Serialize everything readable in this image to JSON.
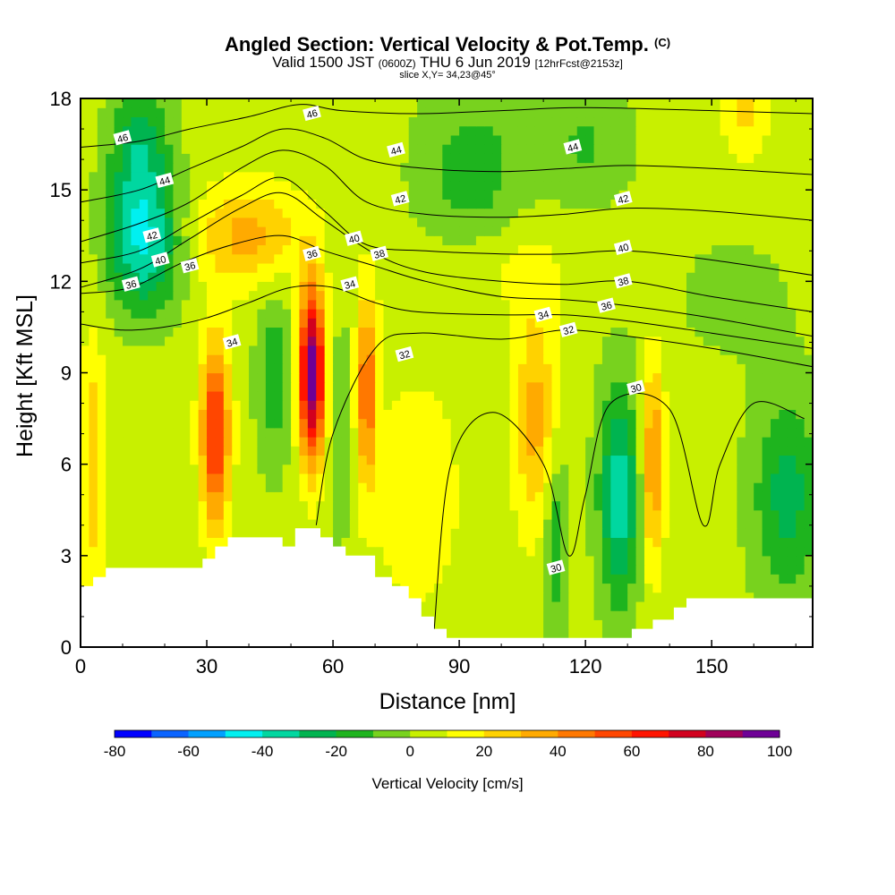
{
  "title": {
    "main": "Angled Section: Vertical Velocity & Pot.Temp.",
    "copyright": "(C)",
    "valid_prefix": "Valid 1500 JST",
    "valid_utc": "(0600Z)",
    "valid_date": "THU 6 Jun 2019",
    "forecast": "[12hrFcst@2153z]",
    "slice": "slice X,Y= 34,23@45°"
  },
  "chart_data": {
    "type": "heatmap",
    "xlabel": "Distance [nm]",
    "ylabel": "Height [Kft MSL]",
    "xlim": [
      0,
      174
    ],
    "ylim": [
      0,
      18
    ],
    "x_ticks": [
      0,
      30,
      60,
      90,
      120,
      150
    ],
    "y_ticks": [
      0,
      3,
      6,
      9,
      12,
      15,
      18
    ],
    "colorbar": {
      "label": "Vertical Velocity [cm/s]",
      "ticks": [
        -80,
        -60,
        -40,
        -20,
        0,
        20,
        40,
        60,
        80,
        100
      ],
      "bins": [
        -80,
        -70,
        -60,
        -50,
        -40,
        -30,
        -20,
        -10,
        0,
        10,
        20,
        30,
        40,
        50,
        60,
        70,
        80,
        90,
        100
      ],
      "colors": [
        "#0000ff",
        "#0a64ff",
        "#00a0ff",
        "#00f0f0",
        "#00d7a0",
        "#00b450",
        "#1eb41e",
        "#78d21e",
        "#c8f000",
        "#ffff00",
        "#ffd200",
        "#ffaa00",
        "#ff7800",
        "#ff4600",
        "#ff1400",
        "#d2001e",
        "#a0005a",
        "#6e0096"
      ]
    },
    "terrain": [
      [
        0,
        2
      ],
      [
        3,
        2
      ],
      [
        3,
        2.3
      ],
      [
        6,
        2.3
      ],
      [
        6,
        2.6
      ],
      [
        29,
        2.6
      ],
      [
        29,
        2.9
      ],
      [
        32,
        2.9
      ],
      [
        32,
        3.3
      ],
      [
        35,
        3.3
      ],
      [
        35,
        3.6
      ],
      [
        48,
        3.6
      ],
      [
        48,
        3.3
      ],
      [
        51,
        3.3
      ],
      [
        51,
        3.9
      ],
      [
        57,
        3.9
      ],
      [
        57,
        3.6
      ],
      [
        60,
        3.6
      ],
      [
        60,
        3.3
      ],
      [
        63,
        3.3
      ],
      [
        63,
        3.0
      ],
      [
        70,
        3.0
      ],
      [
        70,
        2.3
      ],
      [
        74,
        2.3
      ],
      [
        74,
        2.0
      ],
      [
        78,
        2.0
      ],
      [
        78,
        1.6
      ],
      [
        81,
        1.6
      ],
      [
        81,
        1.0
      ],
      [
        84,
        1.0
      ],
      [
        84,
        0.6
      ],
      [
        87,
        0.6
      ],
      [
        87,
        0.3
      ],
      [
        131,
        0.3
      ],
      [
        131,
        0.6
      ],
      [
        136,
        0.6
      ],
      [
        136,
        0.9
      ],
      [
        141,
        0.9
      ],
      [
        141,
        1.3
      ],
      [
        144,
        1.3
      ],
      [
        144,
        1.6
      ],
      [
        174,
        1.6
      ]
    ],
    "theta_contours": [
      {
        "label": "30",
        "points": [
          [
            84,
            0.5
          ],
          [
            88,
            6
          ],
          [
            98,
            7.7
          ],
          [
            110,
            6
          ],
          [
            116,
            3
          ],
          [
            120,
            5
          ],
          [
            126,
            8
          ],
          [
            140,
            7.8
          ],
          [
            148,
            4
          ],
          [
            152,
            6
          ],
          [
            160,
            8
          ],
          [
            172,
            7.5
          ]
        ],
        "label_at": [
          [
            113,
            2.6
          ],
          [
            132,
            8.5
          ]
        ]
      },
      {
        "label": "32",
        "points": [
          [
            56,
            4
          ],
          [
            60,
            7
          ],
          [
            70,
            9.8
          ],
          [
            80,
            10.3
          ],
          [
            100,
            10.1
          ],
          [
            115,
            10.4
          ],
          [
            130,
            10.2
          ],
          [
            150,
            9.8
          ],
          [
            174,
            9.2
          ]
        ],
        "label_at": [
          [
            77,
            9.6
          ],
          [
            116,
            10.4
          ]
        ]
      },
      {
        "label": "34",
        "points": [
          [
            0,
            10.6
          ],
          [
            10,
            10.4
          ],
          [
            20,
            10.5
          ],
          [
            30,
            10.8
          ],
          [
            40,
            11.3
          ],
          [
            50,
            11.8
          ],
          [
            60,
            11.8
          ],
          [
            70,
            11.3
          ],
          [
            80,
            11.0
          ],
          [
            100,
            10.9
          ],
          [
            115,
            10.9
          ],
          [
            130,
            10.7
          ],
          [
            150,
            10.3
          ],
          [
            174,
            9.8
          ]
        ],
        "label_at": [
          [
            36,
            10
          ],
          [
            64,
            11.9
          ],
          [
            110,
            10.9
          ]
        ]
      },
      {
        "label": "36",
        "points": [
          [
            0,
            11.6
          ],
          [
            12,
            11.8
          ],
          [
            24,
            12.6
          ],
          [
            36,
            13.2
          ],
          [
            48,
            13.5
          ],
          [
            58,
            13.0
          ],
          [
            70,
            12.5
          ],
          [
            82,
            12.0
          ],
          [
            100,
            11.5
          ],
          [
            115,
            11.4
          ],
          [
            130,
            11.2
          ],
          [
            150,
            10.8
          ],
          [
            174,
            10.2
          ]
        ],
        "label_at": [
          [
            12,
            11.9
          ],
          [
            26,
            12.5
          ],
          [
            55,
            12.9
          ],
          [
            125,
            11.2
          ]
        ]
      },
      {
        "label": "38",
        "points": [
          [
            0,
            11.8
          ],
          [
            14,
            12.4
          ],
          [
            26,
            13.4
          ],
          [
            38,
            14.4
          ],
          [
            48,
            14.9
          ],
          [
            58,
            14.0
          ],
          [
            70,
            12.9
          ],
          [
            82,
            12.3
          ],
          [
            100,
            12.0
          ],
          [
            115,
            11.9
          ],
          [
            130,
            12.0
          ],
          [
            150,
            11.5
          ],
          [
            174,
            11.0
          ]
        ],
        "label_at": [
          [
            71,
            12.9
          ],
          [
            129,
            12.0
          ]
        ]
      },
      {
        "label": "40",
        "points": [
          [
            0,
            12.6
          ],
          [
            14,
            13.0
          ],
          [
            26,
            13.9
          ],
          [
            38,
            14.8
          ],
          [
            48,
            15.4
          ],
          [
            58,
            14.3
          ],
          [
            68,
            13.2
          ],
          [
            82,
            13.0
          ],
          [
            100,
            12.9
          ],
          [
            115,
            12.9
          ],
          [
            130,
            13.0
          ],
          [
            150,
            12.7
          ],
          [
            174,
            12.2
          ]
        ],
        "label_at": [
          [
            19,
            12.7
          ],
          [
            65,
            13.4
          ],
          [
            129,
            13.1
          ]
        ]
      },
      {
        "label": "42",
        "points": [
          [
            0,
            13.3
          ],
          [
            14,
            13.9
          ],
          [
            26,
            14.6
          ],
          [
            38,
            15.7
          ],
          [
            48,
            16.3
          ],
          [
            58,
            15.8
          ],
          [
            68,
            14.6
          ],
          [
            82,
            14.2
          ],
          [
            100,
            14.1
          ],
          [
            115,
            14.2
          ],
          [
            130,
            14.4
          ],
          [
            150,
            14.3
          ],
          [
            174,
            14.0
          ]
        ],
        "label_at": [
          [
            17,
            13.5
          ],
          [
            76,
            14.7
          ],
          [
            129,
            14.7
          ]
        ]
      },
      {
        "label": "44",
        "points": [
          [
            0,
            14.6
          ],
          [
            14,
            15.0
          ],
          [
            26,
            15.7
          ],
          [
            38,
            16.4
          ],
          [
            48,
            17.0
          ],
          [
            58,
            16.7
          ],
          [
            68,
            16.0
          ],
          [
            82,
            15.7
          ],
          [
            100,
            15.6
          ],
          [
            115,
            15.7
          ],
          [
            130,
            15.8
          ],
          [
            150,
            15.7
          ],
          [
            174,
            15.5
          ]
        ],
        "label_at": [
          [
            20,
            15.3
          ],
          [
            75,
            16.3
          ],
          [
            117,
            16.4
          ]
        ]
      },
      {
        "label": "46",
        "points": [
          [
            0,
            16.4
          ],
          [
            14,
            16.6
          ],
          [
            26,
            17.0
          ],
          [
            40,
            17.4
          ],
          [
            52,
            17.8
          ],
          [
            62,
            17.6
          ],
          [
            80,
            17.5
          ],
          [
            100,
            17.6
          ],
          [
            120,
            17.7
          ],
          [
            150,
            17.6
          ],
          [
            174,
            17.5
          ]
        ],
        "label_at": [
          [
            10,
            16.7
          ],
          [
            55,
            17.5
          ]
        ]
      }
    ],
    "velocity_field_features": [
      {
        "x": 15,
        "y": 13.3,
        "value": -45,
        "sx": 6,
        "sy": 1.6
      },
      {
        "x": 14,
        "y": 16.5,
        "value": -28,
        "sx": 5,
        "sy": 1.5
      },
      {
        "x": 40,
        "y": 13.5,
        "value": 30,
        "sx": 9,
        "sy": 1.2
      },
      {
        "x": 32,
        "y": 7.0,
        "value": 60,
        "sx": 2.4,
        "sy": 2.2
      },
      {
        "x": 55,
        "y": 9.0,
        "value": 95,
        "sx": 2.2,
        "sy": 2.0
      },
      {
        "x": 68,
        "y": 8.5,
        "value": 45,
        "sx": 1.8,
        "sy": 2.2
      },
      {
        "x": 46,
        "y": 9.0,
        "value": -20,
        "sx": 3,
        "sy": 2.2
      },
      {
        "x": 62,
        "y": 7.0,
        "value": -15,
        "sx": 2,
        "sy": 2.5
      },
      {
        "x": 108,
        "y": 7.5,
        "value": 30,
        "sx": 3.5,
        "sy": 2.6
      },
      {
        "x": 113,
        "y": 3.5,
        "value": -25,
        "sx": 2,
        "sy": 2
      },
      {
        "x": 128,
        "y": 5.0,
        "value": -40,
        "sx": 3.5,
        "sy": 2.6
      },
      {
        "x": 136,
        "y": 6.0,
        "value": 40,
        "sx": 1.8,
        "sy": 2.4
      },
      {
        "x": 168,
        "y": 5.0,
        "value": -28,
        "sx": 6,
        "sy": 2.4
      },
      {
        "x": 93,
        "y": 15.5,
        "value": -20,
        "sx": 9,
        "sy": 2.0
      },
      {
        "x": 120,
        "y": 16.5,
        "value": -15,
        "sx": 8,
        "sy": 1.4
      },
      {
        "x": 158,
        "y": 17.5,
        "value": 18,
        "sx": 4,
        "sy": 1.0
      },
      {
        "x": 100,
        "y": 12.5,
        "value": 10,
        "sx": 12,
        "sy": 1.2
      },
      {
        "x": 155,
        "y": 11.5,
        "value": -8,
        "sx": 10,
        "sy": 1.5
      },
      {
        "x": 3,
        "y": 6.0,
        "value": 25,
        "sx": 2,
        "sy": 3
      },
      {
        "x": 80,
        "y": 5.0,
        "value": 12,
        "sx": 8,
        "sy": 3
      }
    ]
  },
  "colors": {
    "plot_background": "#c8f000",
    "terrain_fill": "#ffffff",
    "contour_line": "#000000"
  }
}
